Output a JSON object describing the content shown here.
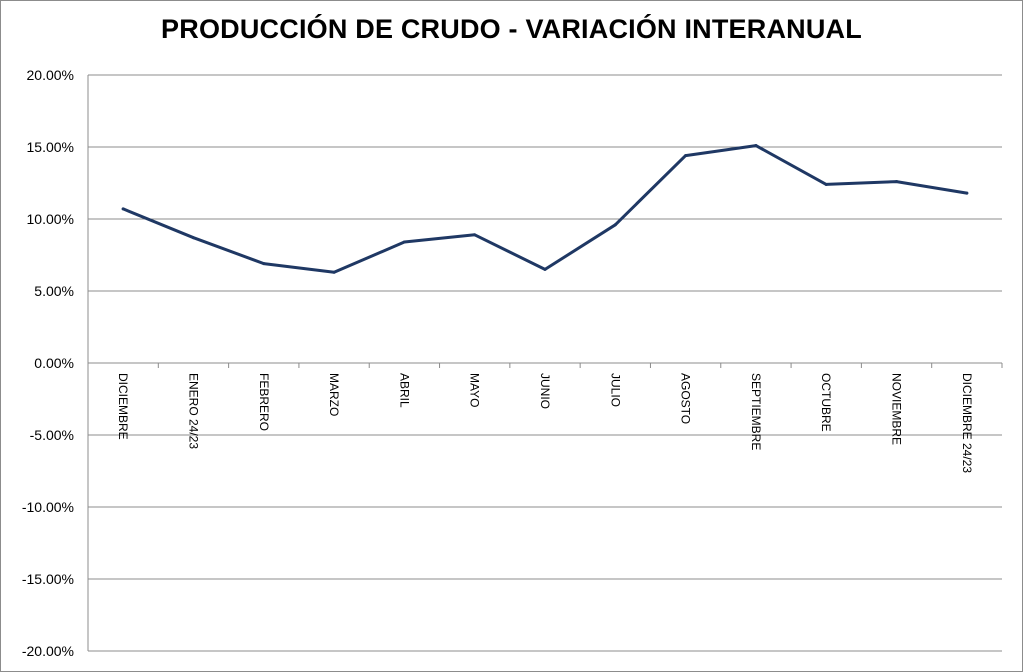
{
  "chart_data": {
    "type": "line",
    "title": "PRODUCCIÓN DE CRUDO - VARIACIÓN INTERANUAL",
    "xlabel": "",
    "ylabel": "",
    "categories": [
      "DICIEMBRE",
      "ENERO 24/23",
      "FEBRERO",
      "MARZO",
      "ABRIL",
      "MAYO",
      "JUNIO",
      "JULIO",
      "AGOSTO",
      "SEPTIEMBRE",
      "OCTUBRE",
      "NOVIEMBRE",
      "DICIEMBRE 24/23"
    ],
    "series": [
      {
        "values": [
          10.7,
          8.7,
          6.9,
          6.3,
          8.4,
          8.9,
          6.5,
          9.6,
          14.4,
          15.1,
          12.4,
          12.6,
          11.8
        ]
      }
    ],
    "ylim": [
      -20,
      20
    ],
    "yticks": [
      "20.00%",
      "15.00%",
      "10.00%",
      "5.00%",
      "0.00%",
      "-5.00%",
      "-10.00%",
      "-15.00%",
      "-20.00%"
    ],
    "grid": true,
    "legend": "none",
    "colors": {
      "line": "#1f3864",
      "grid": "#8c8c8c",
      "axis": "#8c8c8c"
    }
  }
}
